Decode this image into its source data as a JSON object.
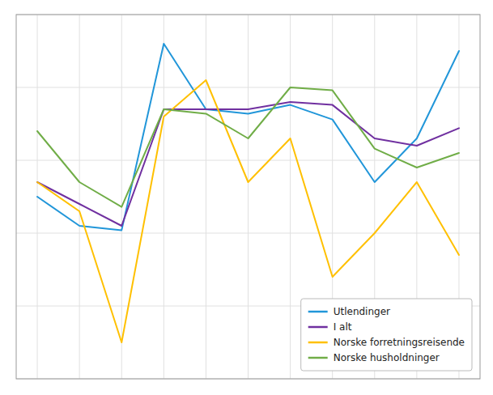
{
  "chart_data": {
    "type": "line",
    "x": [
      0,
      1,
      2,
      3,
      4,
      5,
      6,
      7,
      8,
      9,
      10
    ],
    "series": [
      {
        "name": "Utlendinger",
        "color": "#2196d9",
        "values": [
          -2.5,
          -4.5,
          -4.8,
          8.0,
          3.5,
          3.2,
          3.8,
          2.8,
          -1.5,
          1.5,
          7.5
        ]
      },
      {
        "name": "I alt",
        "color": "#7030a0",
        "values": [
          -1.5,
          -3.0,
          -4.5,
          3.5,
          3.5,
          3.5,
          4.0,
          3.8,
          1.5,
          1.0,
          2.2
        ]
      },
      {
        "name": "Norske forretningsreisende",
        "color": "#ffc000",
        "values": [
          -1.5,
          -3.5,
          -12.5,
          3.0,
          5.5,
          -1.5,
          1.5,
          -8.0,
          -5.0,
          -1.5,
          -6.5
        ]
      },
      {
        "name": "Norske husholdninger",
        "color": "#70ad47",
        "values": [
          2.0,
          -1.5,
          -3.2,
          3.5,
          3.2,
          1.5,
          5.0,
          4.8,
          0.8,
          -0.5,
          0.5
        ]
      }
    ],
    "xlim": [
      -0.5,
      10.5
    ],
    "xticks": [
      0,
      1,
      2,
      3,
      4,
      5,
      6,
      7,
      8,
      9,
      10
    ],
    "ylim": [
      -15,
      10
    ],
    "yticks": [
      -15,
      -10,
      -5,
      0,
      5,
      10
    ],
    "grid": true,
    "legend": "lower right",
    "tick_labels": false
  }
}
